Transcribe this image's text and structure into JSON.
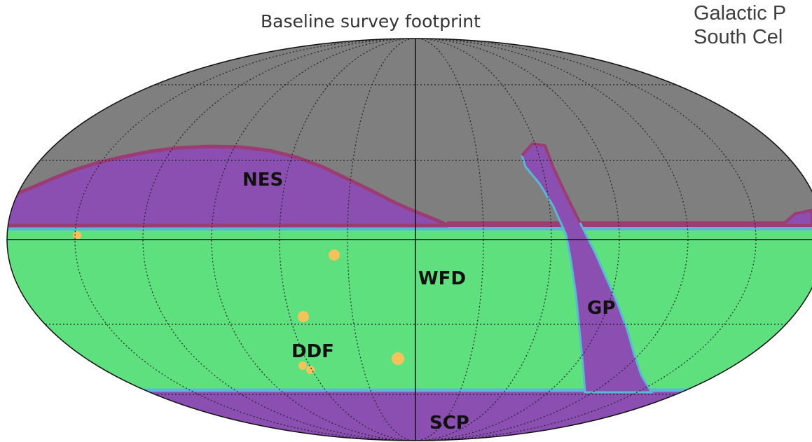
{
  "title": "Baseline survey footprint",
  "side_text": [
    "Galactic P",
    "South Cel"
  ],
  "regions": [
    {
      "name": "NES",
      "label": "NES",
      "color": "#8a4fb0"
    },
    {
      "name": "WFD",
      "label": "WFD",
      "color": "#5fe07f"
    },
    {
      "name": "GP",
      "label": "GP",
      "color": "#8a4fb0"
    },
    {
      "name": "DDF",
      "label": "DDF",
      "color": "#f5c25a"
    },
    {
      "name": "SCP",
      "label": "SCP",
      "color": "#8a4fb0"
    }
  ],
  "colors": {
    "unobserved": "#7f7f7f",
    "purple": "#8a4fb0",
    "purple_edge": "#9b3d72",
    "green": "#5fe07f",
    "green_edge": "#59b8d4",
    "ddf": "#f5c25a"
  }
}
